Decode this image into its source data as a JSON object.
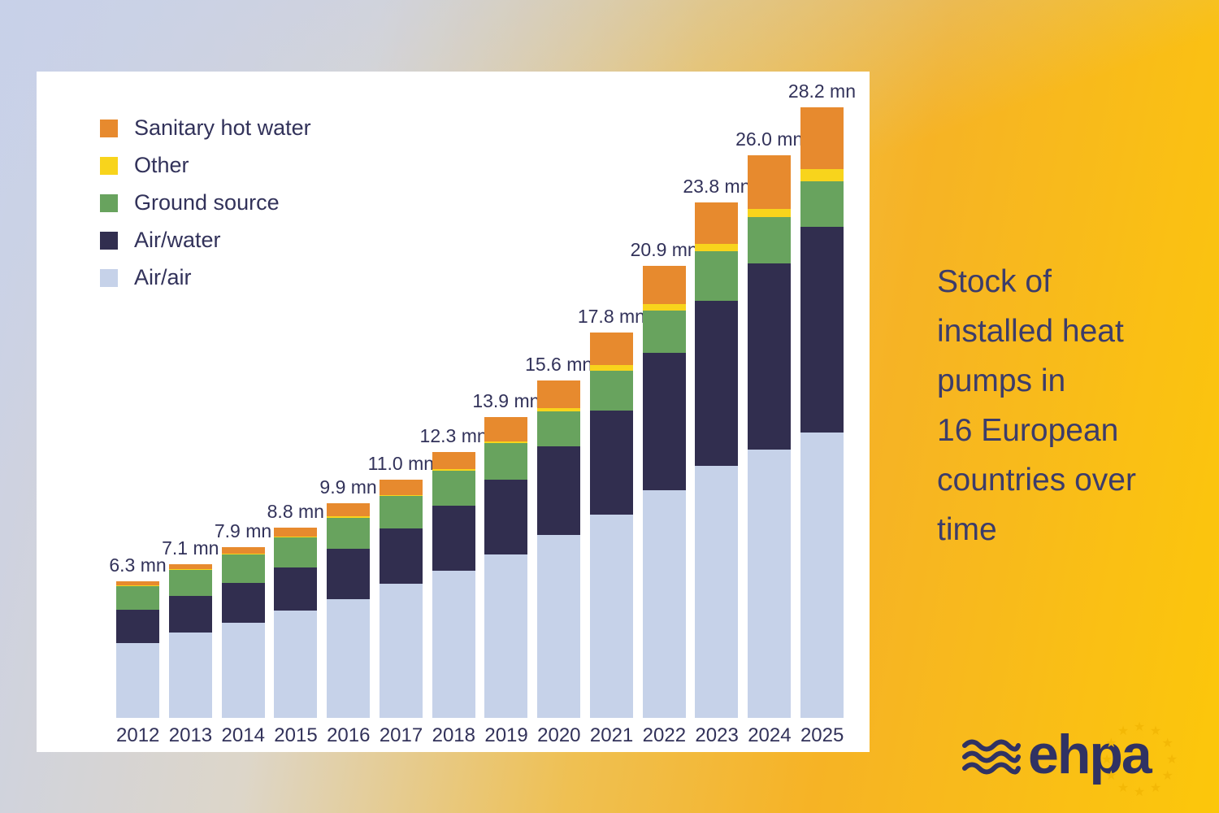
{
  "side_panel": {
    "title": "Stock of\ninstalled heat\npumps in\n16 European\ncountries over\ntime"
  },
  "logo": {
    "text": "ehpa",
    "star_color": "#f3b806",
    "navy_color": "#303263"
  },
  "chart_data": {
    "type": "bar",
    "stacked": true,
    "title": "Stock of installed heat pumps in 16 European countries over time",
    "xlabel": "",
    "ylabel": "",
    "unit": "mn",
    "ylim": [
      0,
      28.2
    ],
    "grid": false,
    "legend_position": "top-left",
    "categories": [
      "2012",
      "2013",
      "2014",
      "2015",
      "2016",
      "2017",
      "2018",
      "2019",
      "2020",
      "2021",
      "2022",
      "2023",
      "2024",
      "2025"
    ],
    "totals": [
      6.3,
      7.1,
      7.9,
      8.8,
      9.9,
      11.0,
      12.3,
      13.9,
      15.6,
      17.8,
      20.9,
      23.8,
      26.0,
      28.2
    ],
    "totals_labels": [
      "6.3 mn",
      "7.1 mn",
      "7.9 mn",
      "8.8 mn",
      "9.9 mn",
      "11.0 mn",
      "12.3 mn",
      "13.9 mn",
      "15.6 mn",
      "17.8 mn",
      "20.9 mn",
      "23.8 mn",
      "26.0 mn",
      "28.2 mn"
    ],
    "series": [
      {
        "key": "air-air",
        "name": "Air/air",
        "color": "#c6d2e9",
        "values": [
          3.45,
          3.95,
          4.4,
          4.95,
          5.5,
          6.2,
          6.8,
          7.55,
          8.45,
          9.4,
          10.5,
          11.65,
          12.4,
          13.2
        ]
      },
      {
        "key": "air-water",
        "name": "Air/water",
        "color": "#312e4f",
        "values": [
          1.55,
          1.7,
          1.85,
          2.0,
          2.3,
          2.55,
          3.0,
          3.45,
          4.1,
          4.8,
          6.35,
          7.6,
          8.6,
          9.5
        ]
      },
      {
        "key": "ground-source",
        "name": "Ground source",
        "color": "#68a35e",
        "values": [
          1.1,
          1.2,
          1.3,
          1.38,
          1.45,
          1.5,
          1.62,
          1.68,
          1.62,
          1.85,
          1.95,
          2.3,
          2.15,
          2.1
        ]
      },
      {
        "key": "other",
        "name": "Other",
        "color": "#f8d41c",
        "values": [
          0.02,
          0.02,
          0.03,
          0.04,
          0.05,
          0.06,
          0.08,
          0.1,
          0.13,
          0.26,
          0.3,
          0.35,
          0.37,
          0.55
        ]
      },
      {
        "key": "sanitary-hot-water",
        "name": "Sanitary hot water",
        "color": "#e78a2e",
        "values": [
          0.18,
          0.23,
          0.32,
          0.43,
          0.6,
          0.69,
          0.8,
          1.12,
          1.3,
          1.49,
          1.8,
          1.9,
          2.48,
          2.85
        ]
      }
    ],
    "legend": [
      {
        "label": "Sanitary hot water",
        "color": "#e78a2e"
      },
      {
        "label": "Other",
        "color": "#f8d41c"
      },
      {
        "label": "Ground source",
        "color": "#68a35e"
      },
      {
        "label": "Air/water",
        "color": "#312e4f"
      },
      {
        "label": "Air/air",
        "color": "#c6d2e9"
      }
    ]
  }
}
